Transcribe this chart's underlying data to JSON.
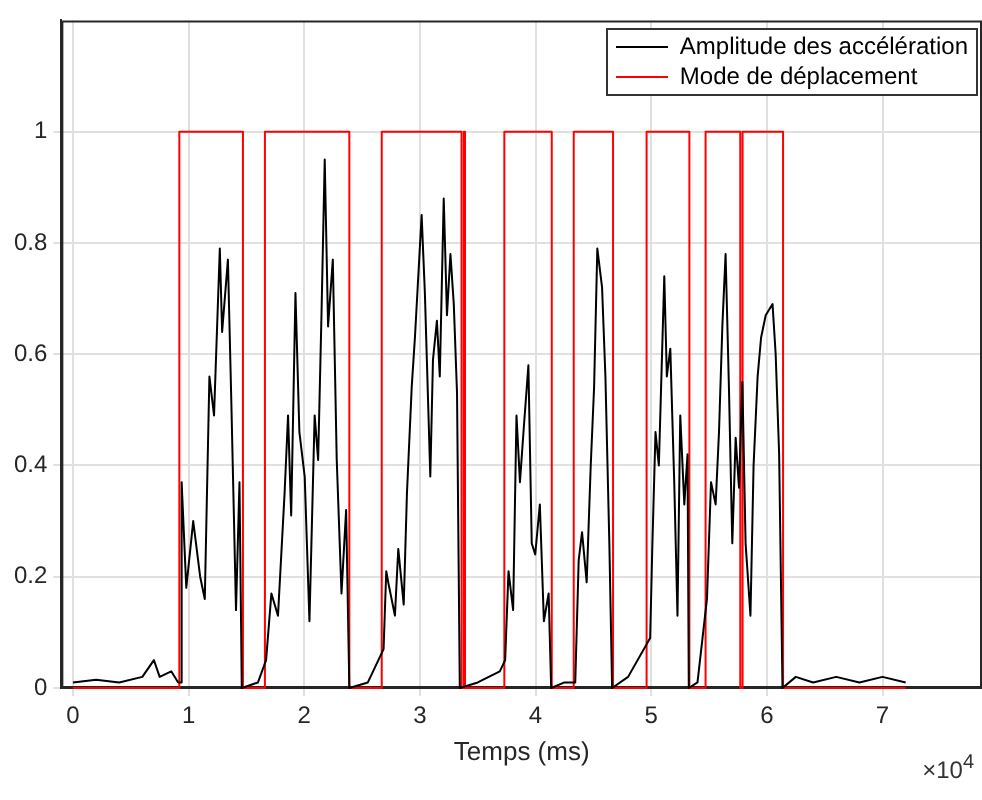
{
  "chart_data": {
    "type": "line",
    "xlabel": "Temps (ms)",
    "annotations": [
      "×10$^{4}$"
    ],
    "xlim": [
      -0.1,
      7.86
    ],
    "ylim": [
      0,
      1.2
    ],
    "xticks": [
      0,
      1,
      2,
      3,
      4,
      5,
      6,
      7
    ],
    "yticks": [
      0,
      0.2,
      0.4,
      0.6,
      0.8,
      1
    ],
    "grid": true,
    "legend": "top right",
    "marker": "none",
    "line_style": "solid",
    "series": [
      {
        "name": "Amplitude des accélération",
        "color": "#000000",
        "x": [
          0,
          0.2,
          0.4,
          0.6,
          0.7,
          0.75,
          0.85,
          0.91,
          0.93,
          0.94,
          0.98,
          1.04,
          1.1,
          1.14,
          1.18,
          1.22,
          1.27,
          1.29,
          1.34,
          1.37,
          1.41,
          1.44,
          1.46,
          1.6,
          1.67,
          1.716,
          1.773,
          1.83,
          1.86,
          1.887,
          1.924,
          1.958,
          2.004,
          2.045,
          2.09,
          2.12,
          2.149,
          2.177,
          2.206,
          2.247,
          2.281,
          2.322,
          2.362,
          2.39,
          2.55,
          2.686,
          2.709,
          2.726,
          2.784,
          2.813,
          2.86,
          2.888,
          2.929,
          2.957,
          3.015,
          3.043,
          3.09,
          3.113,
          3.147,
          3.172,
          3.206,
          3.234,
          3.264,
          3.293,
          3.321,
          3.345,
          3.5,
          3.691,
          3.737,
          3.766,
          3.806,
          3.835,
          3.865,
          3.899,
          3.938,
          3.967,
          3.997,
          4.037,
          4.072,
          4.113,
          4.135,
          4.25,
          4.343,
          4.373,
          4.402,
          4.442,
          4.477,
          4.506,
          4.534,
          4.575,
          4.604,
          4.638,
          4.662,
          4.8,
          4.991,
          5.009,
          5.037,
          5.066,
          5.113,
          5.135,
          5.165,
          5.199,
          5.227,
          5.251,
          5.286,
          5.314,
          5.325,
          5.4,
          5.482,
          5.517,
          5.557,
          5.586,
          5.615,
          5.643,
          5.672,
          5.701,
          5.73,
          5.759,
          5.788,
          5.816,
          5.858,
          5.885,
          5.92,
          5.95,
          5.99,
          6.019,
          6.049,
          6.076,
          6.106,
          6.135,
          6.25,
          6.4,
          6.6,
          6.8,
          7,
          7.2
        ],
        "values": [
          0.01,
          0.015,
          0.01,
          0.02,
          0.05,
          0.02,
          0.03,
          0.01,
          0.01,
          0.37,
          0.18,
          0.3,
          0.2,
          0.16,
          0.56,
          0.49,
          0.79,
          0.64,
          0.77,
          0.51,
          0.14,
          0.37,
          0,
          0.01,
          0.05,
          0.17,
          0.13,
          0.35,
          0.49,
          0.31,
          0.71,
          0.46,
          0.38,
          0.12,
          0.49,
          0.41,
          0.67,
          0.95,
          0.65,
          0.77,
          0.41,
          0.17,
          0.32,
          0,
          0.01,
          0.07,
          0.21,
          0.19,
          0.13,
          0.25,
          0.15,
          0.35,
          0.54,
          0.63,
          0.85,
          0.71,
          0.38,
          0.59,
          0.66,
          0.56,
          0.88,
          0.67,
          0.78,
          0.69,
          0.53,
          0,
          0.01,
          0.03,
          0.05,
          0.21,
          0.14,
          0.49,
          0.37,
          0.47,
          0.58,
          0.26,
          0.24,
          0.33,
          0.12,
          0.17,
          0,
          0.01,
          0.01,
          0.23,
          0.28,
          0.19,
          0.4,
          0.54,
          0.79,
          0.72,
          0.56,
          0.26,
          0,
          0.02,
          0.09,
          0.25,
          0.46,
          0.4,
          0.74,
          0.56,
          0.61,
          0.37,
          0.13,
          0.49,
          0.33,
          0.42,
          0,
          0.01,
          0.16,
          0.37,
          0.33,
          0.46,
          0.65,
          0.78,
          0.54,
          0.26,
          0.45,
          0.36,
          0.55,
          0.26,
          0.13,
          0.4,
          0.56,
          0.63,
          0.67,
          0.68,
          0.69,
          0.6,
          0.42,
          0,
          0.02,
          0.01,
          0.02,
          0.01,
          0.02,
          0.01
        ]
      },
      {
        "name": "Mode de déplacement",
        "color": "#ff0000",
        "type": "step",
        "x": [
          0,
          0.92,
          1.47,
          1.66,
          2.39,
          2.67,
          3.36,
          3.38,
          3.39,
          3.73,
          4.14,
          4.33,
          4.67,
          4.96,
          5.33,
          5.47,
          5.77,
          5.79,
          6.14,
          7.2
        ],
        "values": [
          0,
          1,
          0,
          1,
          0,
          1,
          0,
          1,
          0,
          1,
          0,
          1,
          0,
          1,
          0,
          1,
          0,
          1,
          0,
          0
        ]
      }
    ]
  }
}
